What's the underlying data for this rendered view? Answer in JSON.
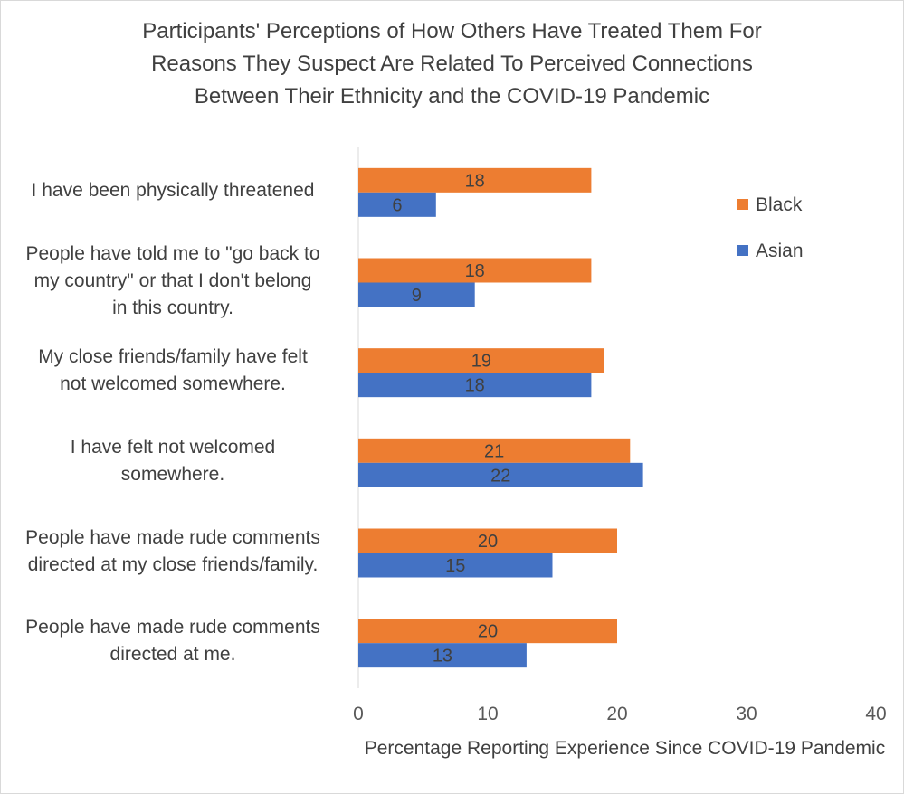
{
  "chart_data": {
    "type": "bar",
    "orientation": "horizontal",
    "title_lines": [
      "Participants' Perceptions of How Others Have Treated Them For",
      "Reasons They Suspect Are Related To Perceived Connections",
      "Between Their Ethnicity and the COVID-19 Pandemic"
    ],
    "categories": [
      [
        "I have been physically threatened"
      ],
      [
        "People have told me to \"go back to",
        "my country\" or that I don't belong",
        "in this country."
      ],
      [
        "My close friends/family have felt",
        "not welcomed somewhere."
      ],
      [
        "I have felt not welcomed",
        "somewhere."
      ],
      [
        "People have made rude comments",
        "directed at my close friends/family."
      ],
      [
        "People have made rude comments",
        "directed at me."
      ]
    ],
    "series": [
      {
        "name": "Black",
        "color": "#ED7D31",
        "values": [
          18,
          18,
          19,
          21,
          20,
          20
        ]
      },
      {
        "name": "Asian",
        "color": "#4472C4",
        "values": [
          6,
          9,
          18,
          22,
          15,
          13
        ]
      }
    ],
    "xlim": [
      0,
      40
    ],
    "xticks": [
      0,
      10,
      20,
      30,
      40
    ],
    "xlabel": "Percentage Reporting Experience Since COVID-19 Pandemic",
    "ylabel": "",
    "legend_position": "top-right",
    "grid": false
  }
}
